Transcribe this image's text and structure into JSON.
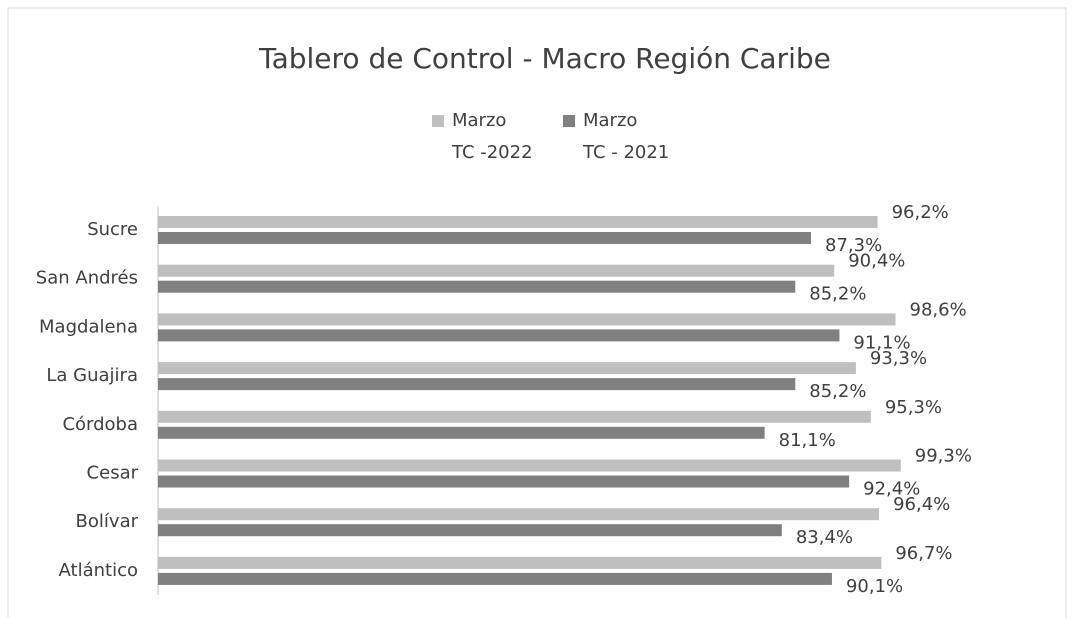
{
  "chart_data": {
    "type": "barh",
    "title": "Tablero de Control - Macro Región Caribe",
    "categories": [
      "Sucre",
      "San Andrés",
      "Magdalena",
      "La Guajira",
      "Córdoba",
      "Cesar",
      "Bolívar",
      "Atlántico"
    ],
    "series": [
      {
        "name": "Marzo\nTC -2022",
        "color": "#bfbfbf",
        "values": [
          96.2,
          90.4,
          98.6,
          93.3,
          95.3,
          99.3,
          96.4,
          96.7
        ],
        "value_labels": [
          "96,2%",
          "90,4%",
          "98,6%",
          "93,3%",
          "95,3%",
          "99,3%",
          "96,4%",
          "96,7%"
        ]
      },
      {
        "name": "Marzo\nTC - 2021",
        "color": "#808080",
        "values": [
          87.3,
          85.2,
          91.1,
          85.2,
          81.1,
          92.4,
          83.4,
          90.1
        ],
        "value_labels": [
          "87,3%",
          "85,2%",
          "91,1%",
          "85,2%",
          "81,1%",
          "92,4%",
          "83,4%",
          "90,1%"
        ]
      }
    ],
    "xlim": [
      0,
      100
    ],
    "legend": "top"
  }
}
